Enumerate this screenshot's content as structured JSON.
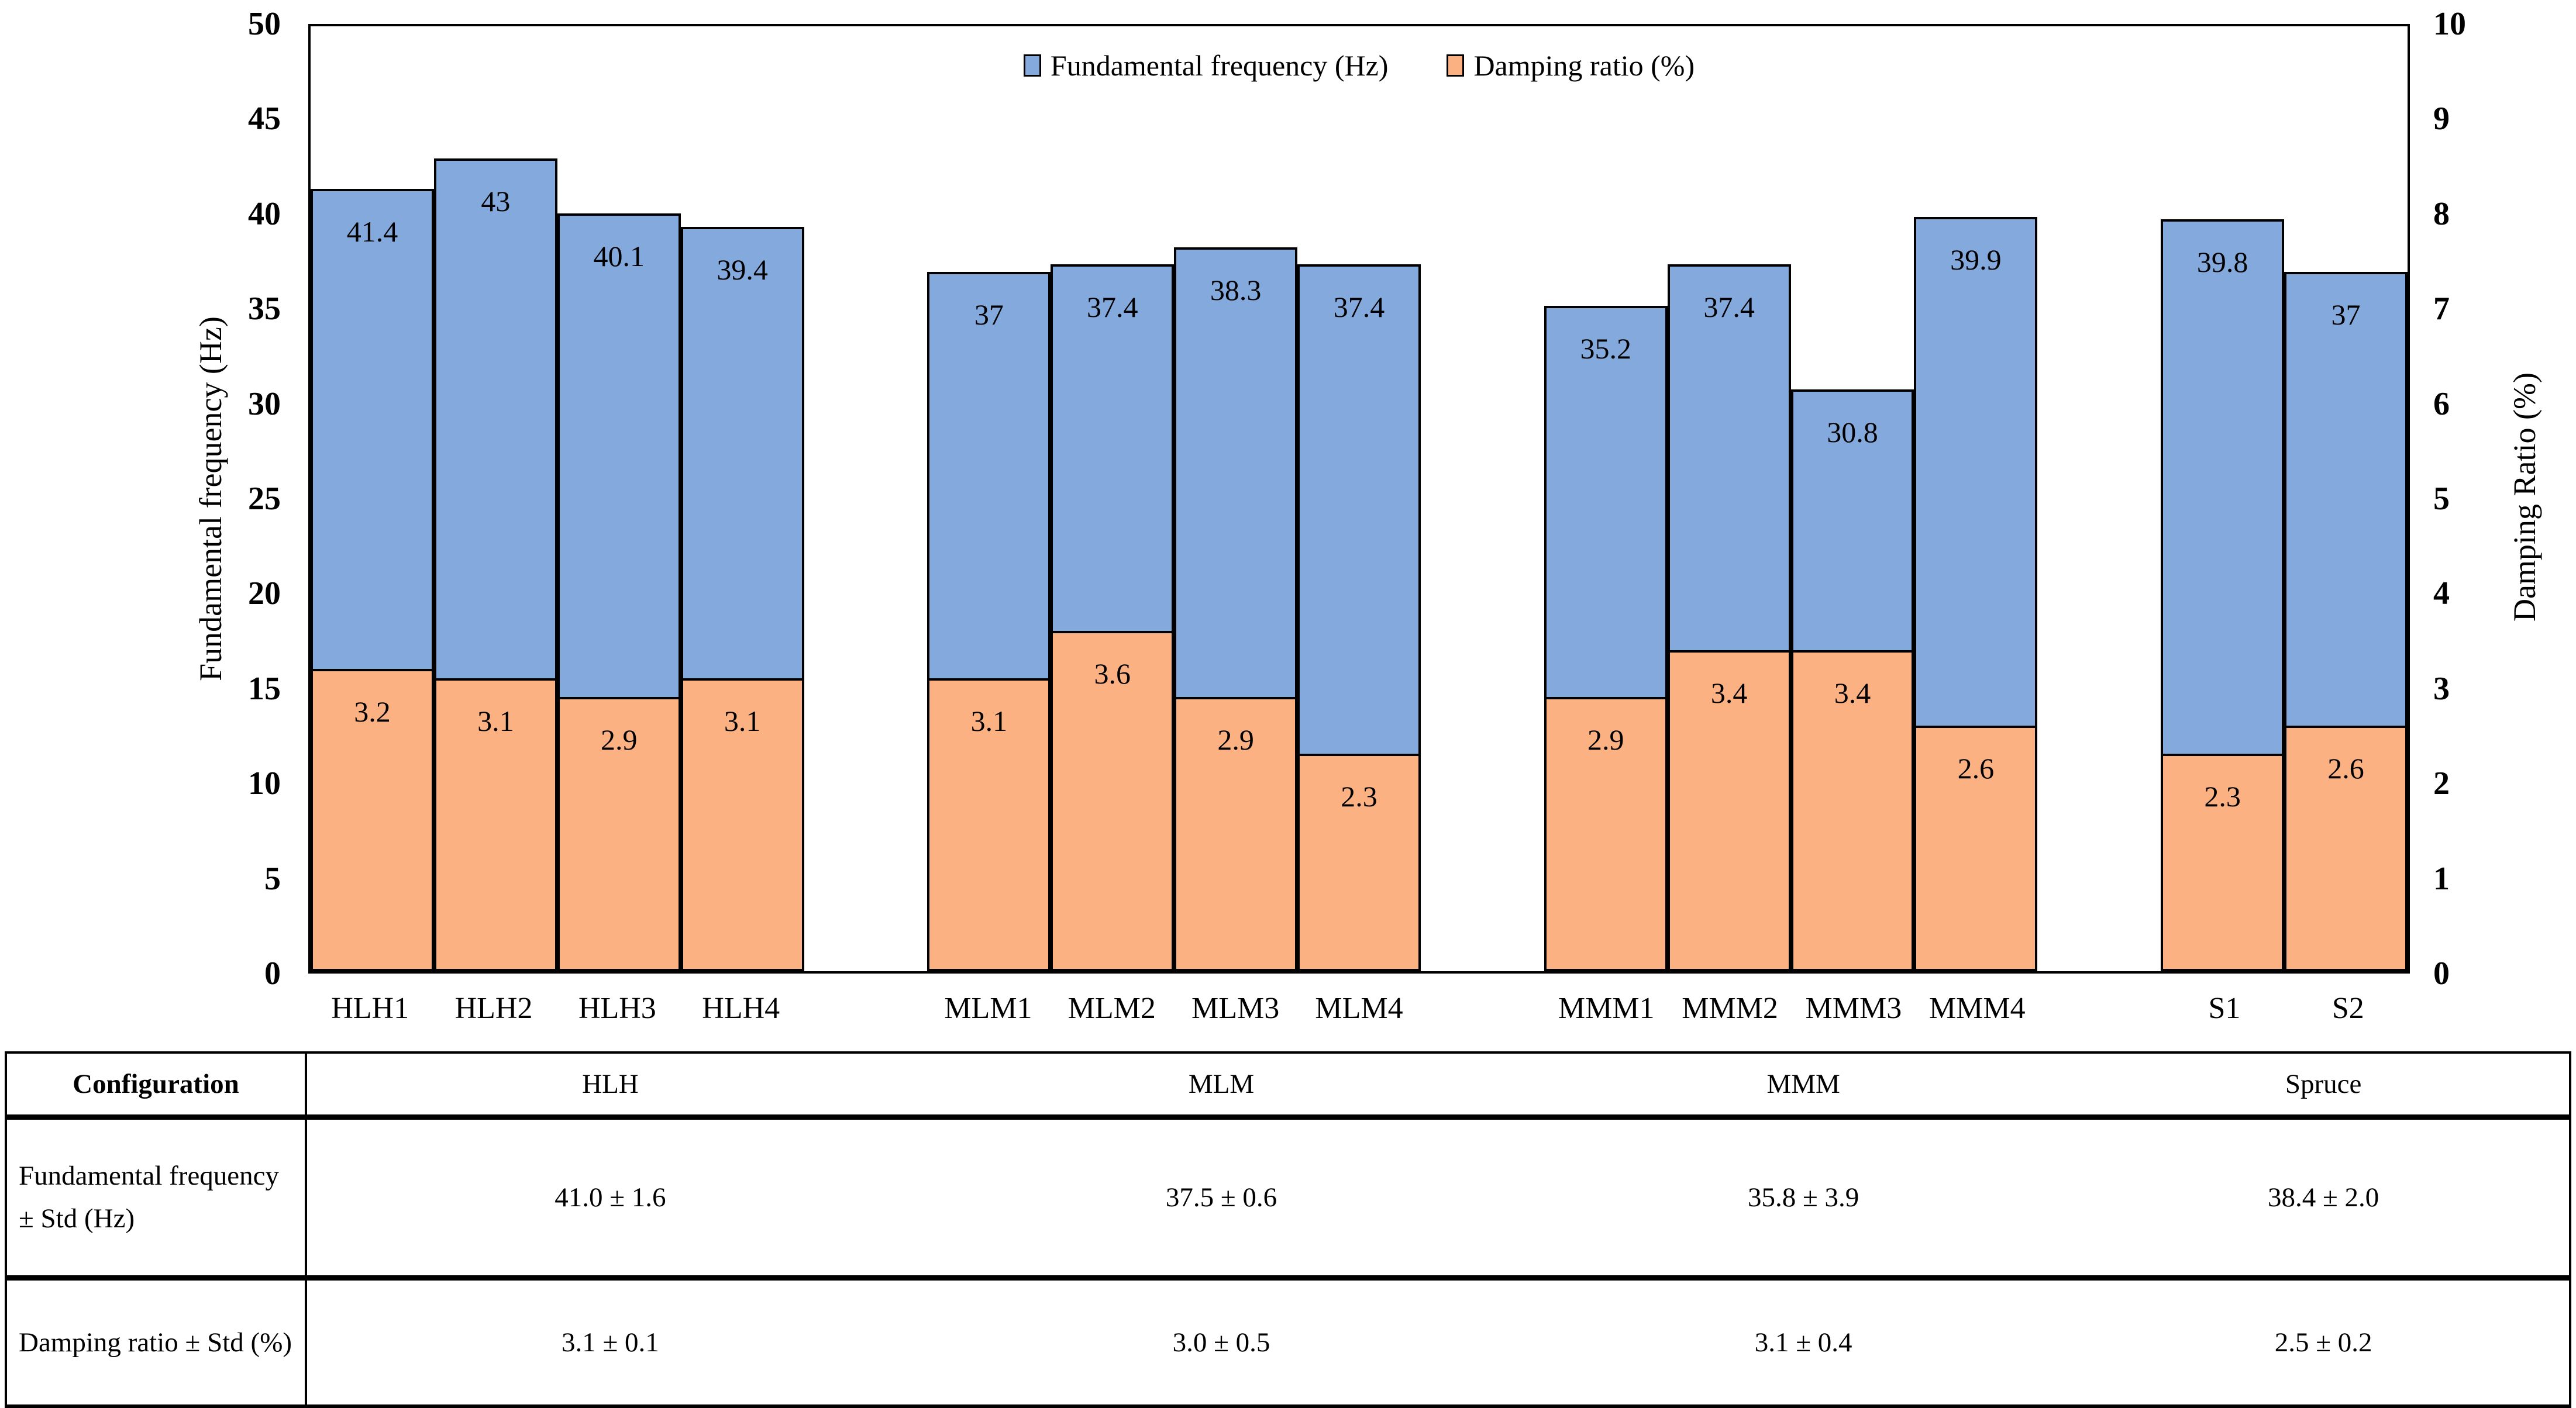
{
  "chart_data": {
    "type": "bar",
    "title": "",
    "categories": [
      "HLH1",
      "HLH2",
      "HLH3",
      "HLH4",
      "MLM1",
      "MLM2",
      "MLM3",
      "MLM4",
      "MMM1",
      "MMM2",
      "MMM3",
      "MMM4",
      "S1",
      "S2"
    ],
    "slots": [
      0,
      1,
      2,
      3,
      5,
      6,
      7,
      8,
      10,
      11,
      12,
      13,
      15,
      16
    ],
    "total_slots": 17,
    "grid": false,
    "legend_position": "top-center",
    "legend": [
      {
        "label": "Fundamental frequency (Hz)",
        "color": "#84A9DD"
      },
      {
        "label": "Damping ratio (%)",
        "color": "#FCB183"
      }
    ],
    "left_axis": {
      "title": "Fundamental frequency (Hz)",
      "min": 0,
      "max": 50,
      "step": 5
    },
    "right_axis": {
      "title": "Damping Ratio (%)",
      "min": 0,
      "max": 10,
      "step": 1
    },
    "series": [
      {
        "name": "Fundamental frequency (Hz)",
        "axis": "left",
        "color": "#84A9DD",
        "values": [
          41.4,
          43,
          40.1,
          39.4,
          37,
          37.4,
          38.3,
          37.4,
          35.2,
          37.4,
          30.8,
          39.9,
          39.8,
          37
        ],
        "labels": [
          "41.4",
          "43",
          "40.1",
          "39.4",
          "37",
          "37.4",
          "38.3",
          "37.4",
          "35.2",
          "37.4",
          "30.8",
          "39.9",
          "39.8",
          "37"
        ]
      },
      {
        "name": "Damping ratio (%)",
        "axis": "right",
        "color": "#FCB183",
        "values": [
          3.2,
          3.1,
          2.9,
          3.1,
          3.1,
          3.6,
          2.9,
          2.3,
          2.9,
          3.4,
          3.4,
          2.6,
          2.3,
          2.6
        ],
        "labels": [
          "3.2",
          "3.1",
          "2.9",
          "3.1",
          "3.1",
          "3.6",
          "2.9",
          "2.3",
          "2.9",
          "3.4",
          "3.4",
          "2.6",
          "2.3",
          "2.6"
        ]
      }
    ]
  },
  "table": {
    "columns": [
      "Configuration",
      "HLH",
      "MLM",
      "MMM",
      "Spruce"
    ],
    "rows": [
      {
        "label": "Fundamental frequency ± Std (Hz)",
        "values": [
          "41.0 ± 1.6",
          "37.5 ± 0.6",
          "35.8 ± 3.9",
          "38.4 ± 2.0"
        ]
      },
      {
        "label": "Damping ratio ± Std (%)",
        "values": [
          "3.1 ± 0.1",
          "3.0 ± 0.5",
          "3.1 ± 0.4",
          "2.5 ± 0.2"
        ]
      }
    ]
  }
}
